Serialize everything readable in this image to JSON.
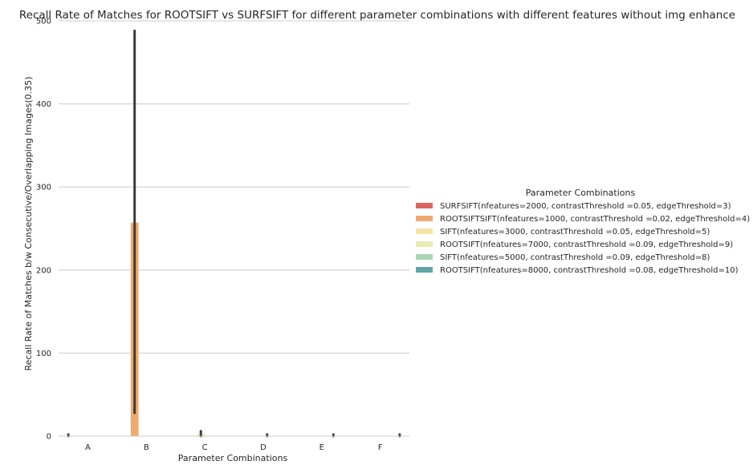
{
  "chart_data": {
    "type": "bar",
    "title": "Recall Rate of Matches for ROOTSIFT vs SURFSIFT for different parameter combinations with different features without img enhance",
    "xlabel": "Parameter Combinations",
    "ylabel": "Recall Rate of Matches b/w Consecutive/Overlapping Images(0.35)",
    "categories": [
      "A",
      "B",
      "C",
      "D",
      "E",
      "F"
    ],
    "ylim": [
      0,
      500
    ],
    "yticks": [
      0,
      100,
      200,
      300,
      400,
      500
    ],
    "grid": "horizontal",
    "legend": {
      "title": "Parameter Combinations",
      "placement": "right"
    },
    "series": [
      {
        "name": "SURFSIFT(nfeatures=2000, contrastThreshold =0.05, edgeThreshold=3)",
        "color": "#d9675f",
        "values": [
          0.5,
          0,
          0,
          0,
          0,
          0
        ],
        "ci": [
          [
            0,
            2
          ],
          null,
          null,
          null,
          null,
          null
        ]
      },
      {
        "name": "ROOTSIFTSIFT(nfeatures=1000, contrastThreshold =0.02, edgeThreshold=4)",
        "color": "#eeaa6e",
        "values": [
          0,
          257,
          0,
          0,
          0,
          0
        ],
        "ci": [
          null,
          [
            28,
            488
          ],
          null,
          null,
          null,
          null
        ]
      },
      {
        "name": "SIFT(nfeatures=3000, contrastThreshold =0.05, edgeThreshold=5)",
        "color": "#f6e1a6",
        "values": [
          0,
          0,
          2,
          0,
          0,
          0
        ],
        "ci": [
          null,
          null,
          [
            0,
            6
          ],
          null,
          null,
          null
        ]
      },
      {
        "name": "ROOTSIFT(nfeatures=7000, contrastThreshold =0.09, edgeThreshold=9)",
        "color": "#e6edb0",
        "values": [
          0,
          0,
          0,
          0.5,
          0,
          0
        ],
        "ci": [
          null,
          null,
          null,
          [
            0,
            2
          ],
          null,
          null
        ]
      },
      {
        "name": "SIFT(nfeatures=5000, contrastThreshold =0.09, edgeThreshold=8)",
        "color": "#a8d6b0",
        "values": [
          0,
          0,
          0,
          0,
          0.5,
          0
        ],
        "ci": [
          null,
          null,
          null,
          null,
          [
            0,
            2
          ],
          null
        ]
      },
      {
        "name": "ROOTSIFT(nfeatures=8000, contrastThreshold =0.08, edgeThreshold=10)",
        "color": "#5fa3a9",
        "values": [
          0,
          0,
          0,
          0,
          0,
          0.5
        ],
        "ci": [
          null,
          null,
          null,
          null,
          null,
          [
            0,
            2
          ]
        ]
      }
    ]
  }
}
